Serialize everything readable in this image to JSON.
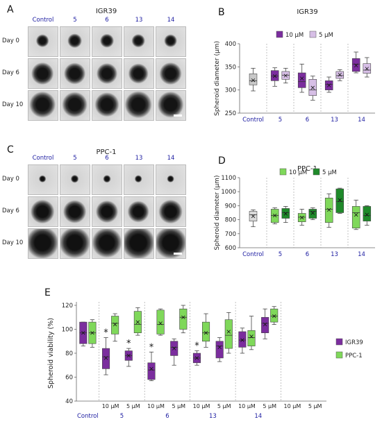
{
  "panels": {
    "A": {
      "letter": "A",
      "title": "IGR39",
      "cols": [
        "Control",
        "5",
        "6",
        "13",
        "14"
      ],
      "rows": [
        "Day 0",
        "Day 6",
        "Day 10"
      ]
    },
    "C": {
      "letter": "C",
      "title": "PPC-1",
      "cols": [
        "Control",
        "5",
        "6",
        "13",
        "14"
      ],
      "rows": [
        "Day 0",
        "Day 6",
        "Day 10"
      ]
    }
  },
  "chart_data": [
    {
      "id": "B",
      "letter": "B",
      "type": "box",
      "title": "IGR39",
      "ylabel": "Spheroid diameter (µm)",
      "ylim": [
        250,
        400
      ],
      "yticks": [
        250,
        300,
        350,
        400
      ],
      "groups": [
        "Control",
        "5",
        "6",
        "13",
        "14"
      ],
      "series": [
        {
          "name": "10 µM",
          "color": "#7b2d9e"
        },
        {
          "name": "5 µM",
          "color": "#d7bfe6"
        }
      ],
      "legend": "top",
      "boxes": [
        {
          "group": "Control",
          "color": "#c8c8c8",
          "min": 298,
          "q1": 311,
          "median": 320,
          "q3": 335,
          "max": 347,
          "mean": 321
        },
        {
          "group": "5",
          "series": "10 µM",
          "min": 308,
          "q1": 320,
          "median": 330,
          "q3": 342,
          "max": 348,
          "mean": 330
        },
        {
          "group": "5",
          "series": "5 µM",
          "min": 315,
          "q1": 323,
          "median": 332,
          "q3": 340,
          "max": 347,
          "mean": 331
        },
        {
          "group": "6",
          "series": "10 µM",
          "min": 295,
          "q1": 305,
          "median": 318,
          "q3": 337,
          "max": 356,
          "mean": 325
        },
        {
          "group": "6",
          "series": "5 µM",
          "min": 278,
          "q1": 288,
          "median": 300,
          "q3": 323,
          "max": 330,
          "mean": 305
        },
        {
          "group": "13",
          "series": "10 µM",
          "min": 295,
          "q1": 300,
          "median": 312,
          "q3": 320,
          "max": 328,
          "mean": 310
        },
        {
          "group": "13",
          "series": "5 µM",
          "min": 320,
          "q1": 325,
          "median": 331,
          "q3": 340,
          "max": 344,
          "mean": 333
        },
        {
          "group": "14",
          "series": "10 µM",
          "min": 337,
          "q1": 340,
          "median": 356,
          "q3": 368,
          "max": 382,
          "mean": 353
        },
        {
          "group": "14",
          "series": "5 µM",
          "min": 328,
          "q1": 336,
          "median": 343,
          "q3": 357,
          "max": 370,
          "mean": 346
        }
      ]
    },
    {
      "id": "D",
      "letter": "D",
      "type": "box",
      "title": "PPC-1",
      "ylabel": "Spheroid diameter (µm)",
      "ylim": [
        600,
        1100
      ],
      "yticks": [
        600,
        700,
        800,
        900,
        1000,
        1100
      ],
      "groups": [
        "Control",
        "5",
        "6",
        "13",
        "14"
      ],
      "series": [
        {
          "name": "10 µM",
          "color": "#7fd85a"
        },
        {
          "name": "5 µM",
          "color": "#1f8a2a"
        }
      ],
      "legend": "top",
      "boxes": [
        {
          "group": "Control",
          "color": "#d9d9d9",
          "min": 750,
          "q1": 790,
          "median": 835,
          "q3": 860,
          "max": 870,
          "mean": 825
        },
        {
          "group": "5",
          "series": "10 µM",
          "min": 770,
          "q1": 780,
          "median": 830,
          "q3": 875,
          "max": 885,
          "mean": 830
        },
        {
          "group": "5",
          "series": "5 µM",
          "min": 780,
          "q1": 810,
          "median": 850,
          "q3": 880,
          "max": 895,
          "mean": 843
        },
        {
          "group": "6",
          "series": "10 µM",
          "min": 760,
          "q1": 785,
          "median": 818,
          "q3": 845,
          "max": 875,
          "mean": 815
        },
        {
          "group": "6",
          "series": "5 µM",
          "min": 800,
          "q1": 810,
          "median": 860,
          "q3": 875,
          "max": 885,
          "mean": 848
        },
        {
          "group": "13",
          "series": "10 µM",
          "min": 745,
          "q1": 780,
          "median": 875,
          "q3": 955,
          "max": 985,
          "mean": 870
        },
        {
          "group": "13",
          "series": "5 µM",
          "min": 845,
          "q1": 850,
          "median": 930,
          "q3": 1020,
          "max": 1025,
          "mean": 940
        },
        {
          "group": "14",
          "series": "10 µM",
          "min": 730,
          "q1": 740,
          "median": 850,
          "q3": 895,
          "max": 940,
          "mean": 835
        },
        {
          "group": "14",
          "series": "5 µM",
          "min": 760,
          "q1": 790,
          "median": 830,
          "q3": 895,
          "max": 900,
          "mean": 836
        }
      ]
    },
    {
      "id": "E",
      "letter": "E",
      "type": "box",
      "ylabel": "Spheroid viability (%)",
      "ylim": [
        40,
        120
      ],
      "yticks": [
        40,
        60,
        80,
        100,
        120
      ],
      "groups": [
        "Control",
        "5",
        "6",
        "13",
        "14"
      ],
      "subgroups": [
        "",
        "10 µM",
        "5 µM",
        "10 µM",
        "5 µM",
        "10 µM",
        "5 µM",
        "10 µM",
        "5 µM",
        "10 µM",
        "5 µM"
      ],
      "series": [
        {
          "name": "IGR39",
          "color": "#7b2d9e"
        },
        {
          "name": "PPC-1",
          "color": "#7fd85a"
        }
      ],
      "legend": "right",
      "significance_marker": "*",
      "boxes": [
        {
          "slot": 0,
          "series": "IGR39",
          "min": 86,
          "q1": 88,
          "median": 97,
          "q3": 106,
          "max": 106,
          "mean": 97
        },
        {
          "slot": 0,
          "series": "PPC-1",
          "min": 85,
          "q1": 88,
          "median": 97,
          "q3": 106,
          "max": 108,
          "mean": 97
        },
        {
          "slot": 1,
          "series": "IGR39",
          "min": 62,
          "q1": 67,
          "median": 77,
          "q3": 84,
          "max": 93,
          "mean": 76,
          "sig": true
        },
        {
          "slot": 1,
          "series": "PPC-1",
          "min": 90,
          "q1": 96,
          "median": 105,
          "q3": 111,
          "max": 113,
          "mean": 104
        },
        {
          "slot": 2,
          "series": "IGR39",
          "min": 69,
          "q1": 74,
          "median": 78,
          "q3": 82,
          "max": 84,
          "mean": 78,
          "sig": true
        },
        {
          "slot": 2,
          "series": "PPC-1",
          "min": 95,
          "q1": 97,
          "median": 104,
          "q3": 115,
          "max": 118,
          "mean": 106
        },
        {
          "slot": 3,
          "series": "IGR39",
          "min": 57,
          "q1": 58,
          "median": 66,
          "q3": 72,
          "max": 81,
          "mean": 67,
          "sig": true
        },
        {
          "slot": 3,
          "series": "PPC-1",
          "min": 95,
          "q1": 96,
          "median": 104,
          "q3": 116,
          "max": 117,
          "mean": 105
        },
        {
          "slot": 4,
          "series": "IGR39",
          "min": 70,
          "q1": 78,
          "median": 85,
          "q3": 90,
          "max": 92,
          "mean": 84
        },
        {
          "slot": 4,
          "series": "PPC-1",
          "min": 97,
          "q1": 100,
          "median": 110,
          "q3": 117,
          "max": 120,
          "mean": 110
        },
        {
          "slot": 5,
          "series": "IGR39",
          "min": 70,
          "q1": 72,
          "median": 76,
          "q3": 80,
          "max": 82,
          "mean": 76,
          "sig": true
        },
        {
          "slot": 5,
          "series": "PPC-1",
          "min": 85,
          "q1": 90,
          "median": 97,
          "q3": 106,
          "max": 113,
          "mean": 97
        },
        {
          "slot": 6,
          "series": "IGR39",
          "min": 73,
          "q1": 76,
          "median": 86,
          "q3": 90,
          "max": 93,
          "mean": 85
        },
        {
          "slot": 6,
          "series": "PPC-1",
          "min": 80,
          "q1": 84,
          "median": 95,
          "q3": 108,
          "max": 114,
          "mean": 98
        },
        {
          "slot": 7,
          "series": "IGR39",
          "min": 80,
          "q1": 85,
          "median": 91,
          "q3": 98,
          "max": 101,
          "mean": 91
        },
        {
          "slot": 7,
          "series": "PPC-1",
          "min": 83,
          "q1": 86,
          "median": 93,
          "q3": 99,
          "max": 111,
          "mean": 94
        },
        {
          "slot": 8,
          "series": "IGR39",
          "min": 92,
          "q1": 97,
          "median": 105,
          "q3": 110,
          "max": 117,
          "mean": 104
        },
        {
          "slot": 8,
          "series": "PPC-1",
          "min": 104,
          "q1": 106,
          "median": 111,
          "q3": 117,
          "max": 119,
          "mean": 111
        }
      ]
    }
  ]
}
